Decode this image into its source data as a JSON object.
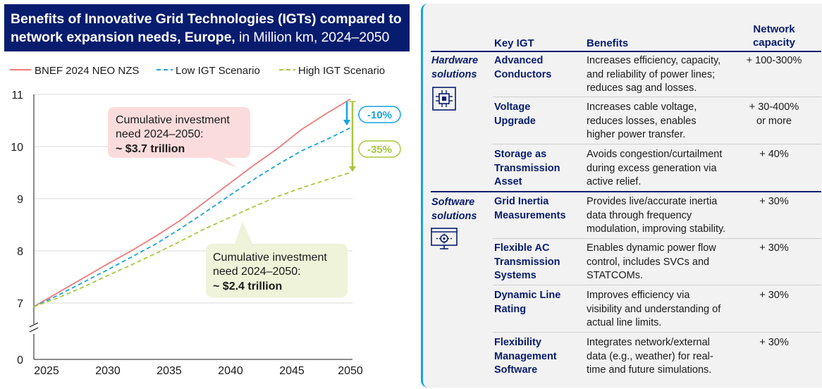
{
  "chart_title": {
    "bold": "Benefits of Innovative Grid Technologies (IGTs) compared to network expansion needs, Europe,",
    "normal": " in Million km, 2024–2050"
  },
  "chart_data": {
    "type": "line",
    "xlabel": "",
    "ylabel": "",
    "x_ticks": [
      "2025",
      "2030",
      "2035",
      "2040",
      "2045",
      "2050"
    ],
    "y_ticks": [
      "0",
      "7",
      "8",
      "9",
      "10",
      "11"
    ],
    "ylim_upper": [
      7,
      11
    ],
    "axis_break": true,
    "legend_position": "top",
    "x": [
      2024,
      2026,
      2028,
      2030,
      2032,
      2034,
      2036,
      2038,
      2040,
      2042,
      2044,
      2046,
      2048,
      2050
    ],
    "series": [
      {
        "name": "BNEF 2024 NEO NZS",
        "color": "#f07b7b",
        "dash": "solid",
        "values": [
          6.93,
          7.2,
          7.47,
          7.74,
          8.0,
          8.28,
          8.58,
          8.93,
          9.28,
          9.63,
          9.96,
          10.33,
          10.63,
          10.91
        ]
      },
      {
        "name": "Low IGT Scenario",
        "color": "#16a4dc",
        "dash": "dashed",
        "values": [
          6.93,
          7.15,
          7.39,
          7.63,
          7.88,
          8.13,
          8.42,
          8.73,
          9.05,
          9.36,
          9.65,
          9.92,
          10.13,
          10.36
        ]
      },
      {
        "name": "High IGT Scenario",
        "color": "#a8c73c",
        "dash": "dashed",
        "values": [
          6.93,
          7.1,
          7.3,
          7.52,
          7.73,
          7.95,
          8.18,
          8.42,
          8.63,
          8.84,
          9.04,
          9.21,
          9.36,
          9.5
        ]
      }
    ],
    "callouts": [
      {
        "lines": [
          "Cumulative investment",
          "need 2024–2050:"
        ],
        "bold": "~ $3.7 trillion",
        "color": "#fbdcdc"
      },
      {
        "lines": [
          "Cumulative investment",
          "need 2024–2050:"
        ],
        "bold": "~ $2.4 trillion",
        "color": "#eef3d9"
      }
    ],
    "reductions": [
      {
        "label": "-10%",
        "color": "#16a4dc"
      },
      {
        "label": "-35%",
        "color": "#a8c73c"
      }
    ]
  },
  "table": {
    "headers": {
      "key_igt": "Key IGT",
      "benefits": "Benefits",
      "capacity_l1": "Network",
      "capacity_l2": "capacity"
    },
    "categories": [
      {
        "l1": "Hardware",
        "l2": "solutions",
        "icon": "chip-icon"
      },
      {
        "l1": "Software",
        "l2": "solutions",
        "icon": "monitor-gear-icon"
      }
    ],
    "rows": [
      {
        "name": [
          "Advanced",
          "Conductors"
        ],
        "benefit": [
          "Increases efficiency, capacity,",
          "and reliability of power lines;",
          "reduces sag and losses."
        ],
        "capacity": [
          "+ 100-300%"
        ]
      },
      {
        "name": [
          "Voltage",
          "Upgrade"
        ],
        "benefit": [
          "Increases cable voltage,",
          "reduces losses, enables",
          "higher power transfer."
        ],
        "capacity": [
          "+ 30-400%",
          "or more"
        ]
      },
      {
        "name": [
          "Storage as",
          "Transmission",
          "Asset"
        ],
        "benefit": [
          "Avoids congestion/curtailment",
          "during excess generation via",
          "active relief."
        ],
        "capacity": [
          "+ 40%"
        ]
      },
      {
        "name": [
          "Grid Inertia",
          "Measurements"
        ],
        "benefit": [
          "Provides live/accurate inertia",
          "data through frequency",
          "modulation, improving stability."
        ],
        "capacity": [
          "+ 30%"
        ]
      },
      {
        "name": [
          "Flexible AC",
          "Transmission",
          "Systems"
        ],
        "benefit": [
          "Enables dynamic power flow",
          "control, includes SVCs and",
          "STATCOMs."
        ],
        "capacity": [
          "+ 30%"
        ]
      },
      {
        "name": [
          "Dynamic Line",
          "Rating"
        ],
        "benefit": [
          "Improves efficiency via",
          "visibility and understanding of",
          "actual line limits."
        ],
        "capacity": [
          "+ 30%"
        ]
      },
      {
        "name": [
          "Flexibility",
          "Management",
          "Software"
        ],
        "benefit": [
          "Integrates network/external",
          "data (e.g., weather) for real-",
          "time and future simulations."
        ],
        "capacity": [
          "+ 30%"
        ]
      }
    ]
  },
  "colors": {
    "navy": "#071c6e",
    "cyan": "#16a4dc",
    "bnef": "#f07b7b",
    "low": "#16a4dc",
    "high": "#a8c73c"
  }
}
